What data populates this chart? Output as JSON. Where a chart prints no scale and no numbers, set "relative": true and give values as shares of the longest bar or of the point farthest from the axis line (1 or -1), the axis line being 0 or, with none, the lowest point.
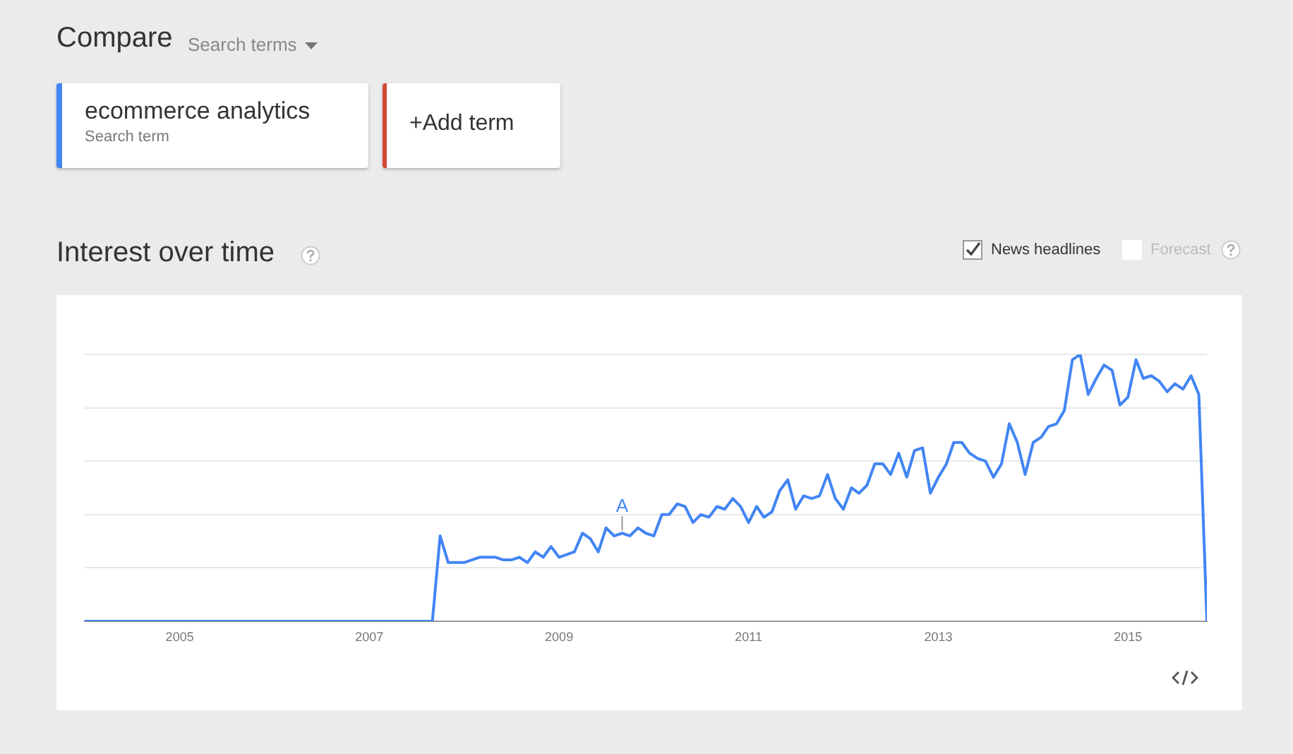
{
  "chart_data": {
    "type": "line",
    "title": "Interest over time",
    "relative": true,
    "grid": "y",
    "legend": "top left",
    "marker": "none",
    "line_style": "solid",
    "xlim": [
      "2004-01",
      "2015-11"
    ],
    "xticks": [
      "2005",
      "2007",
      "2009",
      "2011",
      "2013",
      "2015"
    ],
    "annotations": [
      "Compare",
      "Search terms",
      "Search term",
      "+Add term",
      "News headlines",
      "Forecast",
      {
        "text": "A",
        "x": "2009-09",
        "y": 0.33
      }
    ],
    "series": [
      {
        "name": "ecommerce analytics",
        "color": "#4285f4",
        "x": [
          "2004-01",
          "2007-09",
          "2007-10",
          "2007-11",
          "2008-01",
          "2008-03",
          "2008-05",
          "2008-06",
          "2008-07",
          "2008-08",
          "2008-09",
          "2008-10",
          "2008-11",
          "2008-12",
          "2009-01",
          "2009-03",
          "2009-04",
          "2009-05",
          "2009-06",
          "2009-07",
          "2009-08",
          "2009-09",
          "2009-10",
          "2009-11",
          "2009-12",
          "2010-01",
          "2010-02",
          "2010-03",
          "2010-04",
          "2010-05",
          "2010-06",
          "2010-07",
          "2010-08",
          "2010-09",
          "2010-10",
          "2010-11",
          "2010-12",
          "2011-01",
          "2011-02",
          "2011-03",
          "2011-04",
          "2011-05",
          "2011-06",
          "2011-07",
          "2011-08",
          "2011-09",
          "2011-10",
          "2011-11",
          "2011-12",
          "2012-01",
          "2012-02",
          "2012-03",
          "2012-04",
          "2012-05",
          "2012-06",
          "2012-07",
          "2012-08",
          "2012-09",
          "2012-10",
          "2012-11",
          "2012-12",
          "2013-01",
          "2013-02",
          "2013-03",
          "2013-04",
          "2013-05",
          "2013-06",
          "2013-07",
          "2013-08",
          "2013-09",
          "2013-10",
          "2013-11",
          "2013-12",
          "2014-01",
          "2014-02",
          "2014-03",
          "2014-04",
          "2014-05",
          "2014-06",
          "2014-07",
          "2014-08",
          "2014-09",
          "2014-10",
          "2014-11",
          "2014-12",
          "2015-01",
          "2015-02",
          "2015-03",
          "2015-04",
          "2015-05",
          "2015-06",
          "2015-07",
          "2015-08",
          "2015-09",
          "2015-10",
          "2015-11"
        ],
        "values": [
          0,
          0,
          0.32,
          0.22,
          0.22,
          0.24,
          0.24,
          0.23,
          0.23,
          0.24,
          0.22,
          0.26,
          0.24,
          0.28,
          0.24,
          0.26,
          0.33,
          0.31,
          0.26,
          0.35,
          0.32,
          0.33,
          0.32,
          0.35,
          0.33,
          0.32,
          0.4,
          0.4,
          0.44,
          0.43,
          0.37,
          0.4,
          0.39,
          0.43,
          0.42,
          0.46,
          0.43,
          0.37,
          0.43,
          0.39,
          0.41,
          0.49,
          0.53,
          0.42,
          0.47,
          0.46,
          0.47,
          0.55,
          0.46,
          0.42,
          0.5,
          0.48,
          0.51,
          0.59,
          0.59,
          0.55,
          0.63,
          0.54,
          0.64,
          0.65,
          0.48,
          0.54,
          0.59,
          0.67,
          0.67,
          0.63,
          0.61,
          0.6,
          0.54,
          0.59,
          0.74,
          0.67,
          0.55,
          0.67,
          0.69,
          0.73,
          0.74,
          0.79,
          0.98,
          1,
          0.85,
          0.91,
          0.96,
          0.94,
          0.81,
          0.84,
          0.98,
          0.91,
          0.92,
          0.9,
          0.86,
          0.89,
          0.87,
          0.92,
          0.85,
          0
        ]
      }
    ]
  }
}
